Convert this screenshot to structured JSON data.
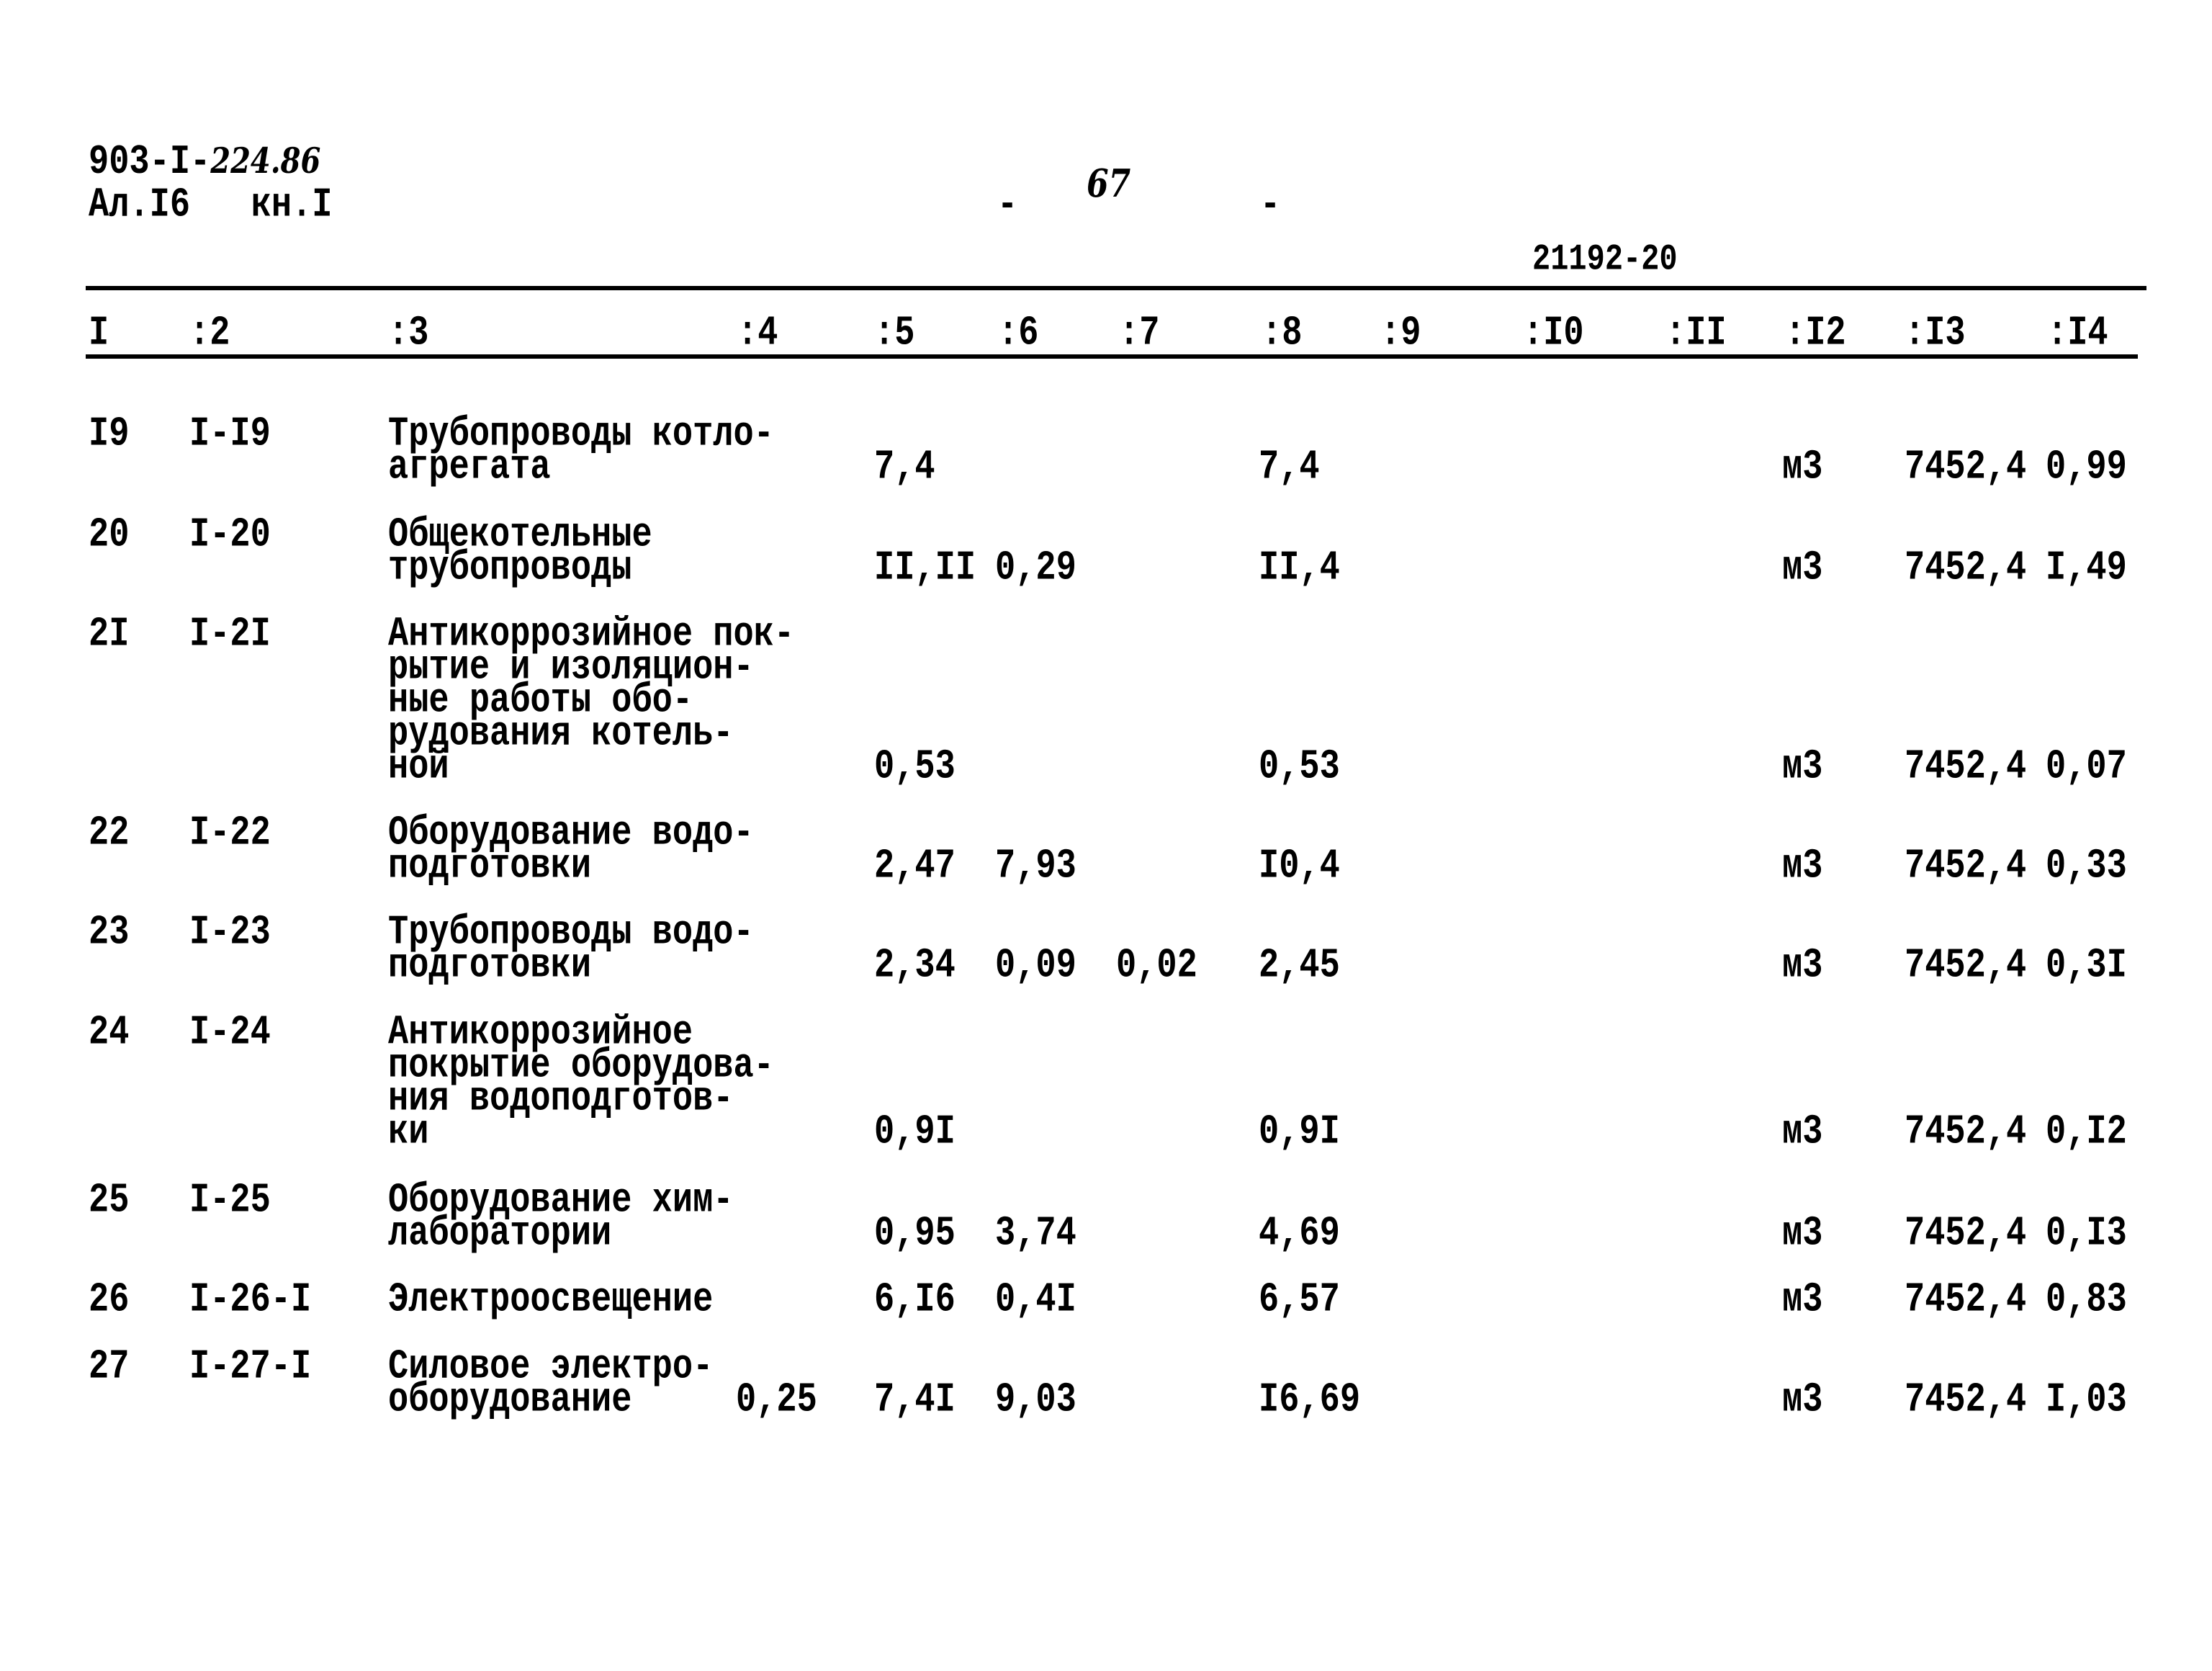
{
  "header": {
    "doc_code_printed": "903-I-",
    "doc_code_handwritten": "224.86",
    "album_book": "Ал.I6   кн.I",
    "page_dash_left": "-",
    "page_number": "67",
    "page_dash_right": "-",
    "sheet_code": "21192-20"
  },
  "columns": [
    "I",
    ":2",
    ":3",
    ":4",
    ":5",
    ":6",
    ":7",
    ":8",
    ":9",
    ":I0",
    ":II",
    ":I2",
    ":I3",
    ":I4"
  ],
  "rows": [
    {
      "c1": "I9",
      "c2": "I-I9",
      "desc": [
        "Трубопроводы котло-",
        "агрегата"
      ],
      "c4": "",
      "c5": "7,4",
      "c6": "",
      "c7": "",
      "c8": "7,4",
      "c12": "м3",
      "c13": "7452,4",
      "c14": "0,99"
    },
    {
      "c1": "20",
      "c2": "I-20",
      "desc": [
        "Общекотельные",
        "трубопроводы"
      ],
      "c4": "",
      "c5": "II,II",
      "c6": "0,29",
      "c7": "",
      "c8": "II,4",
      "c12": "м3",
      "c13": "7452,4",
      "c14": "I,49"
    },
    {
      "c1": "2I",
      "c2": "I-2I",
      "desc": [
        "Антикоррозийное пок-",
        "рытие и изоляцион-",
        "ные работы обо-",
        "рудования котель-",
        "ной"
      ],
      "c4": "",
      "c5": "0,53",
      "c6": "",
      "c7": "",
      "c8": "0,53",
      "c12": "м3",
      "c13": "7452,4",
      "c14": "0,07"
    },
    {
      "c1": "22",
      "c2": "I-22",
      "desc": [
        "Оборудование водо-",
        "подготовки"
      ],
      "c4": "",
      "c5": "2,47",
      "c6": "7,93",
      "c7": "",
      "c8": "I0,4",
      "c12": "м3",
      "c13": "7452,4",
      "c14": "0,33"
    },
    {
      "c1": "23",
      "c2": "I-23",
      "desc": [
        "Трубопроводы водо-",
        "подготовки"
      ],
      "c4": "",
      "c5": "2,34",
      "c6": "0,09",
      "c7": "0,02",
      "c8": "2,45",
      "c12": "м3",
      "c13": "7452,4",
      "c14": "0,3I"
    },
    {
      "c1": "24",
      "c2": "I-24",
      "desc": [
        "Антикоррозийное",
        "покрытие оборудова-",
        "ния водоподготов-",
        "ки"
      ],
      "c4": "",
      "c5": "0,9I",
      "c6": "",
      "c7": "",
      "c8": "0,9I",
      "c12": "м3",
      "c13": "7452,4",
      "c14": "0,I2"
    },
    {
      "c1": "25",
      "c2": "I-25",
      "desc": [
        "Оборудование хим-",
        "лаборатории"
      ],
      "c4": "",
      "c5": "0,95",
      "c6": "3,74",
      "c7": "",
      "c8": "4,69",
      "c12": "м3",
      "c13": "7452,4",
      "c14": "0,I3"
    },
    {
      "c1": "26",
      "c2": "I-26-I",
      "desc": [
        "Электроосвещение"
      ],
      "c4": "",
      "c5": "6,I6",
      "c6": "0,4I",
      "c7": "",
      "c8": "6,57",
      "c12": "м3",
      "c13": "7452,4",
      "c14": "0,83"
    },
    {
      "c1": "27",
      "c2": "I-27-I",
      "desc": [
        "Силовое электро-",
        "оборудование"
      ],
      "c4": "0,25",
      "c5": "7,4I",
      "c6": "9,03",
      "c7": "",
      "c8": "I6,69",
      "c12": "м3",
      "c13": "7452,4",
      "c14": "I,03"
    }
  ]
}
